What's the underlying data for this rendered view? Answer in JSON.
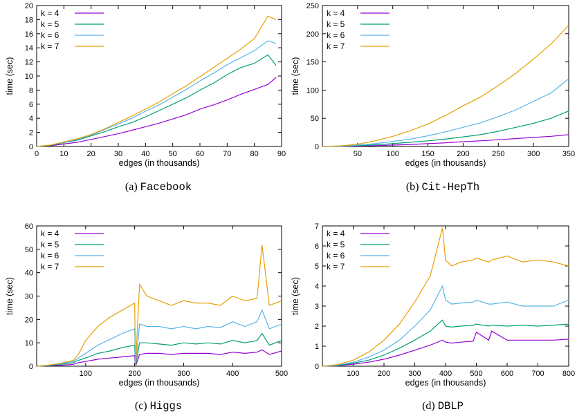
{
  "colors": {
    "k4": "#9400d3",
    "k5": "#009e73",
    "k6": "#56b4e9",
    "k7": "#e69f00"
  },
  "chart_data": [
    {
      "type": "line",
      "caption_prefix": "(a)",
      "caption_name": "Facebook",
      "xlabel": "edges (in thousands)",
      "ylabel": "time (sec)",
      "xlim": [
        0,
        90
      ],
      "ylim": [
        0,
        20
      ],
      "xticks": [
        0,
        10,
        20,
        30,
        40,
        50,
        60,
        70,
        80,
        90
      ],
      "yticks": [
        0,
        2,
        4,
        6,
        8,
        10,
        12,
        14,
        16,
        18,
        20
      ],
      "x": [
        0,
        5,
        10,
        15,
        20,
        25,
        30,
        35,
        40,
        45,
        50,
        55,
        60,
        65,
        70,
        75,
        80,
        85,
        88
      ],
      "series": [
        {
          "name": "k = 4",
          "color_key": "k4",
          "values": [
            0,
            0.1,
            0.35,
            0.6,
            1.0,
            1.4,
            1.8,
            2.3,
            2.8,
            3.3,
            3.9,
            4.5,
            5.3,
            5.9,
            6.6,
            7.4,
            8.1,
            8.8,
            9.8
          ]
        },
        {
          "name": "k = 5",
          "color_key": "k5",
          "values": [
            0,
            0.15,
            0.55,
            0.9,
            1.5,
            2.1,
            2.8,
            3.4,
            4.2,
            5.1,
            6.0,
            6.9,
            8.0,
            9.0,
            10.2,
            11.2,
            11.8,
            13.0,
            11.5
          ]
        },
        {
          "name": "k = 6",
          "color_key": "k6",
          "values": [
            0,
            0.2,
            0.6,
            1.0,
            1.6,
            2.4,
            3.2,
            4.0,
            5.0,
            5.9,
            7.0,
            8.1,
            9.3,
            10.4,
            11.6,
            12.6,
            13.6,
            15.0,
            14.6
          ]
        },
        {
          "name": "k = 7",
          "color_key": "k7",
          "values": [
            0,
            0.2,
            0.65,
            1.1,
            1.7,
            2.5,
            3.4,
            4.3,
            5.3,
            6.3,
            7.5,
            8.6,
            9.9,
            11.2,
            12.5,
            13.8,
            15.3,
            18.5,
            18.0
          ]
        }
      ]
    },
    {
      "type": "line",
      "caption_prefix": "(b)",
      "caption_name": "Cit-HepTh",
      "xlabel": "edges (in thousands)",
      "ylabel": "time (sec)",
      "xlim": [
        0,
        350
      ],
      "ylim": [
        0,
        250
      ],
      "xticks": [
        50,
        100,
        150,
        200,
        250,
        300,
        350
      ],
      "yticks": [
        0,
        50,
        100,
        150,
        200,
        250
      ],
      "x": [
        0,
        25,
        50,
        75,
        100,
        125,
        150,
        175,
        200,
        225,
        250,
        275,
        300,
        325,
        350
      ],
      "series": [
        {
          "name": "k = 4",
          "color_key": "k4",
          "values": [
            0,
            0.3,
            0.8,
            1.5,
            2.5,
            3.5,
            5,
            6.5,
            8.5,
            10,
            12,
            14,
            16,
            18,
            21
          ]
        },
        {
          "name": "k = 5",
          "color_key": "k5",
          "values": [
            0,
            0.5,
            1.5,
            3,
            5,
            7.5,
            10,
            13,
            17,
            21,
            27,
            34,
            41,
            50,
            63
          ]
        },
        {
          "name": "k = 6",
          "color_key": "k6",
          "values": [
            0,
            0.8,
            2.5,
            5,
            9,
            13,
            19,
            26,
            34,
            42,
            53,
            65,
            80,
            95,
            120
          ]
        },
        {
          "name": "k = 7",
          "color_key": "k7",
          "values": [
            0,
            1,
            4,
            10,
            18,
            28,
            40,
            55,
            72,
            88,
            108,
            130,
            155,
            182,
            215
          ]
        }
      ]
    },
    {
      "type": "line",
      "caption_prefix": "(c)",
      "caption_name": "Higgs",
      "xlabel": "edges (in thousands)",
      "ylabel": "time (sec)",
      "xlim": [
        0,
        500
      ],
      "ylim": [
        0,
        60
      ],
      "xticks": [
        100,
        200,
        300,
        400,
        500
      ],
      "yticks": [
        0,
        10,
        20,
        30,
        40,
        50,
        60
      ],
      "x": [
        0,
        25,
        50,
        75,
        85,
        100,
        125,
        150,
        175,
        200,
        202,
        210,
        225,
        250,
        275,
        300,
        325,
        350,
        375,
        400,
        425,
        450,
        460,
        475,
        500
      ],
      "series": [
        {
          "name": "k = 4",
          "color_key": "k4",
          "values": [
            0,
            0.2,
            0.4,
            0.8,
            1.5,
            2,
            3,
            3.5,
            4,
            4.5,
            0,
            5,
            5.5,
            5.5,
            5,
            5.5,
            5.5,
            5.5,
            5,
            6,
            5.5,
            6,
            7,
            5,
            6.5
          ]
        },
        {
          "name": "k = 5",
          "color_key": "k5",
          "values": [
            0,
            0.3,
            0.8,
            1.5,
            2.5,
            3.5,
            5.5,
            6.5,
            8,
            9,
            0,
            10,
            10,
            9.5,
            9,
            10,
            9.5,
            10,
            9.5,
            11,
            10,
            11,
            14,
            9,
            11
          ]
        },
        {
          "name": "k = 6",
          "color_key": "k6",
          "values": [
            0,
            0.4,
            1,
            2,
            3.5,
            5.5,
            9,
            11.5,
            14,
            16,
            0,
            18,
            17,
            17,
            16,
            17,
            16,
            17,
            16.5,
            19,
            17,
            19,
            24,
            16,
            18
          ]
        },
        {
          "name": "k = 7",
          "color_key": "k7",
          "values": [
            0,
            0.5,
            1.3,
            2.5,
            5,
            11,
            17,
            21,
            24,
            27,
            0,
            35,
            30,
            28,
            26,
            28,
            27,
            27,
            26,
            30,
            28,
            29,
            52,
            26,
            28
          ]
        }
      ]
    },
    {
      "type": "line",
      "caption_prefix": "(d)",
      "caption_name": "DBLP",
      "xlabel": "edges (in thousands)",
      "ylabel": "time (sec)",
      "xlim": [
        0,
        800
      ],
      "ylim": [
        0,
        7
      ],
      "xticks": [
        100,
        200,
        300,
        400,
        500,
        600,
        700,
        800
      ],
      "yticks": [
        0,
        1,
        2,
        3,
        4,
        5,
        6,
        7
      ],
      "x": [
        0,
        50,
        100,
        150,
        200,
        250,
        300,
        350,
        390,
        400,
        420,
        450,
        490,
        500,
        540,
        550,
        600,
        650,
        700,
        750,
        800
      ],
      "series": [
        {
          "name": "k = 4",
          "color_key": "k4",
          "values": [
            0,
            0.02,
            0.1,
            0.2,
            0.35,
            0.55,
            0.8,
            1.05,
            1.3,
            1.2,
            1.15,
            1.2,
            1.25,
            1.7,
            1.3,
            1.75,
            1.3,
            1.3,
            1.3,
            1.3,
            1.35
          ]
        },
        {
          "name": "k = 5",
          "color_key": "k5",
          "values": [
            0,
            0.03,
            0.15,
            0.3,
            0.55,
            0.9,
            1.3,
            1.75,
            2.3,
            2.0,
            1.95,
            2.0,
            2.05,
            2.1,
            2.0,
            2.05,
            2.0,
            2.05,
            2.0,
            2.05,
            2.1
          ]
        },
        {
          "name": "k = 6",
          "color_key": "k6",
          "values": [
            0,
            0.05,
            0.2,
            0.45,
            0.8,
            1.3,
            2.0,
            2.8,
            4.0,
            3.3,
            3.1,
            3.15,
            3.2,
            3.3,
            3.1,
            3.1,
            3.2,
            3.0,
            3.0,
            3.0,
            3.3
          ]
        },
        {
          "name": "k = 7",
          "color_key": "k7",
          "values": [
            0,
            0.08,
            0.3,
            0.7,
            1.3,
            2.1,
            3.2,
            4.5,
            6.9,
            5.3,
            5.0,
            5.2,
            5.3,
            5.4,
            5.2,
            5.3,
            5.5,
            5.2,
            5.3,
            5.2,
            5.0
          ]
        }
      ]
    }
  ]
}
